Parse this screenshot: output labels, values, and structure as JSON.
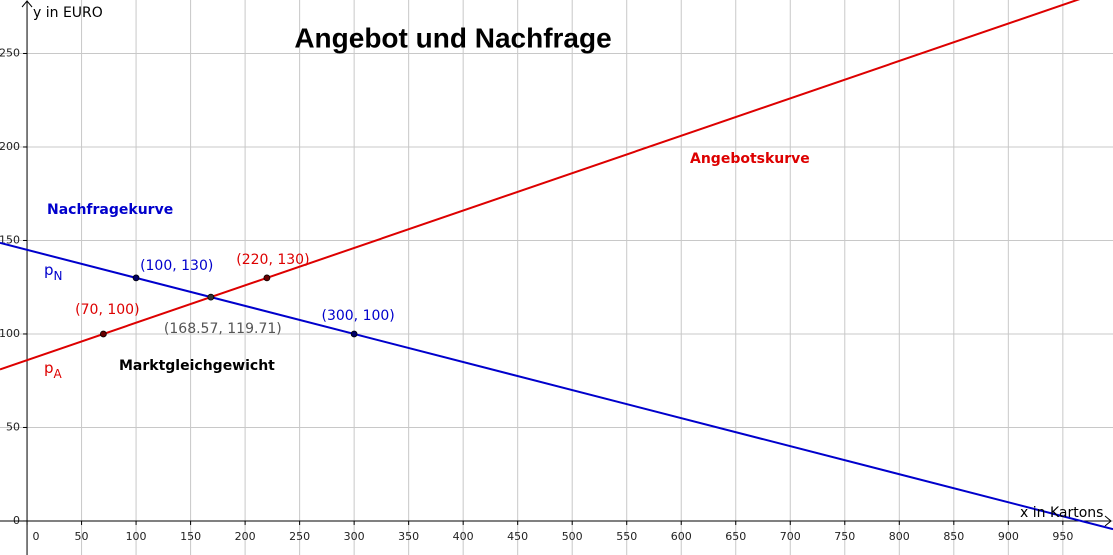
{
  "chart_data": {
    "type": "line",
    "title": "Angebot und Nachfrage",
    "x_label": "x in Kartons",
    "y_label": "y in  EURO",
    "xlim": [
      -24.8,
      996
    ],
    "ylim": [
      -18.2,
      278.6
    ],
    "xticks": [
      0,
      50,
      100,
      150,
      200,
      250,
      300,
      350,
      400,
      450,
      500,
      550,
      600,
      650,
      700,
      750,
      800,
      850,
      900,
      950
    ],
    "yticks": [
      0,
      50,
      100,
      150,
      200,
      250
    ],
    "grid": true,
    "series": [
      {
        "name": "Nachfragekurve",
        "label": {
          "base": "p",
          "sub": "N"
        },
        "color": "#0000cc",
        "x": [
          100,
          300
        ],
        "values": [
          130,
          100
        ],
        "value_labels": [
          "(100, 130)",
          "(300, 100)"
        ]
      },
      {
        "name": "Angebotskurve",
        "label": {
          "base": "p",
          "sub": "A"
        },
        "color": "#dd0000",
        "x": [
          70,
          220
        ],
        "values": [
          100,
          130
        ],
        "value_labels": [
          "(70, 100)",
          "(220, 130)"
        ]
      }
    ],
    "equilibrium": {
      "name": "Marktgleichgewicht",
      "x": 168.57,
      "y": 119.71,
      "label": "(168.57, 119.71)"
    }
  }
}
